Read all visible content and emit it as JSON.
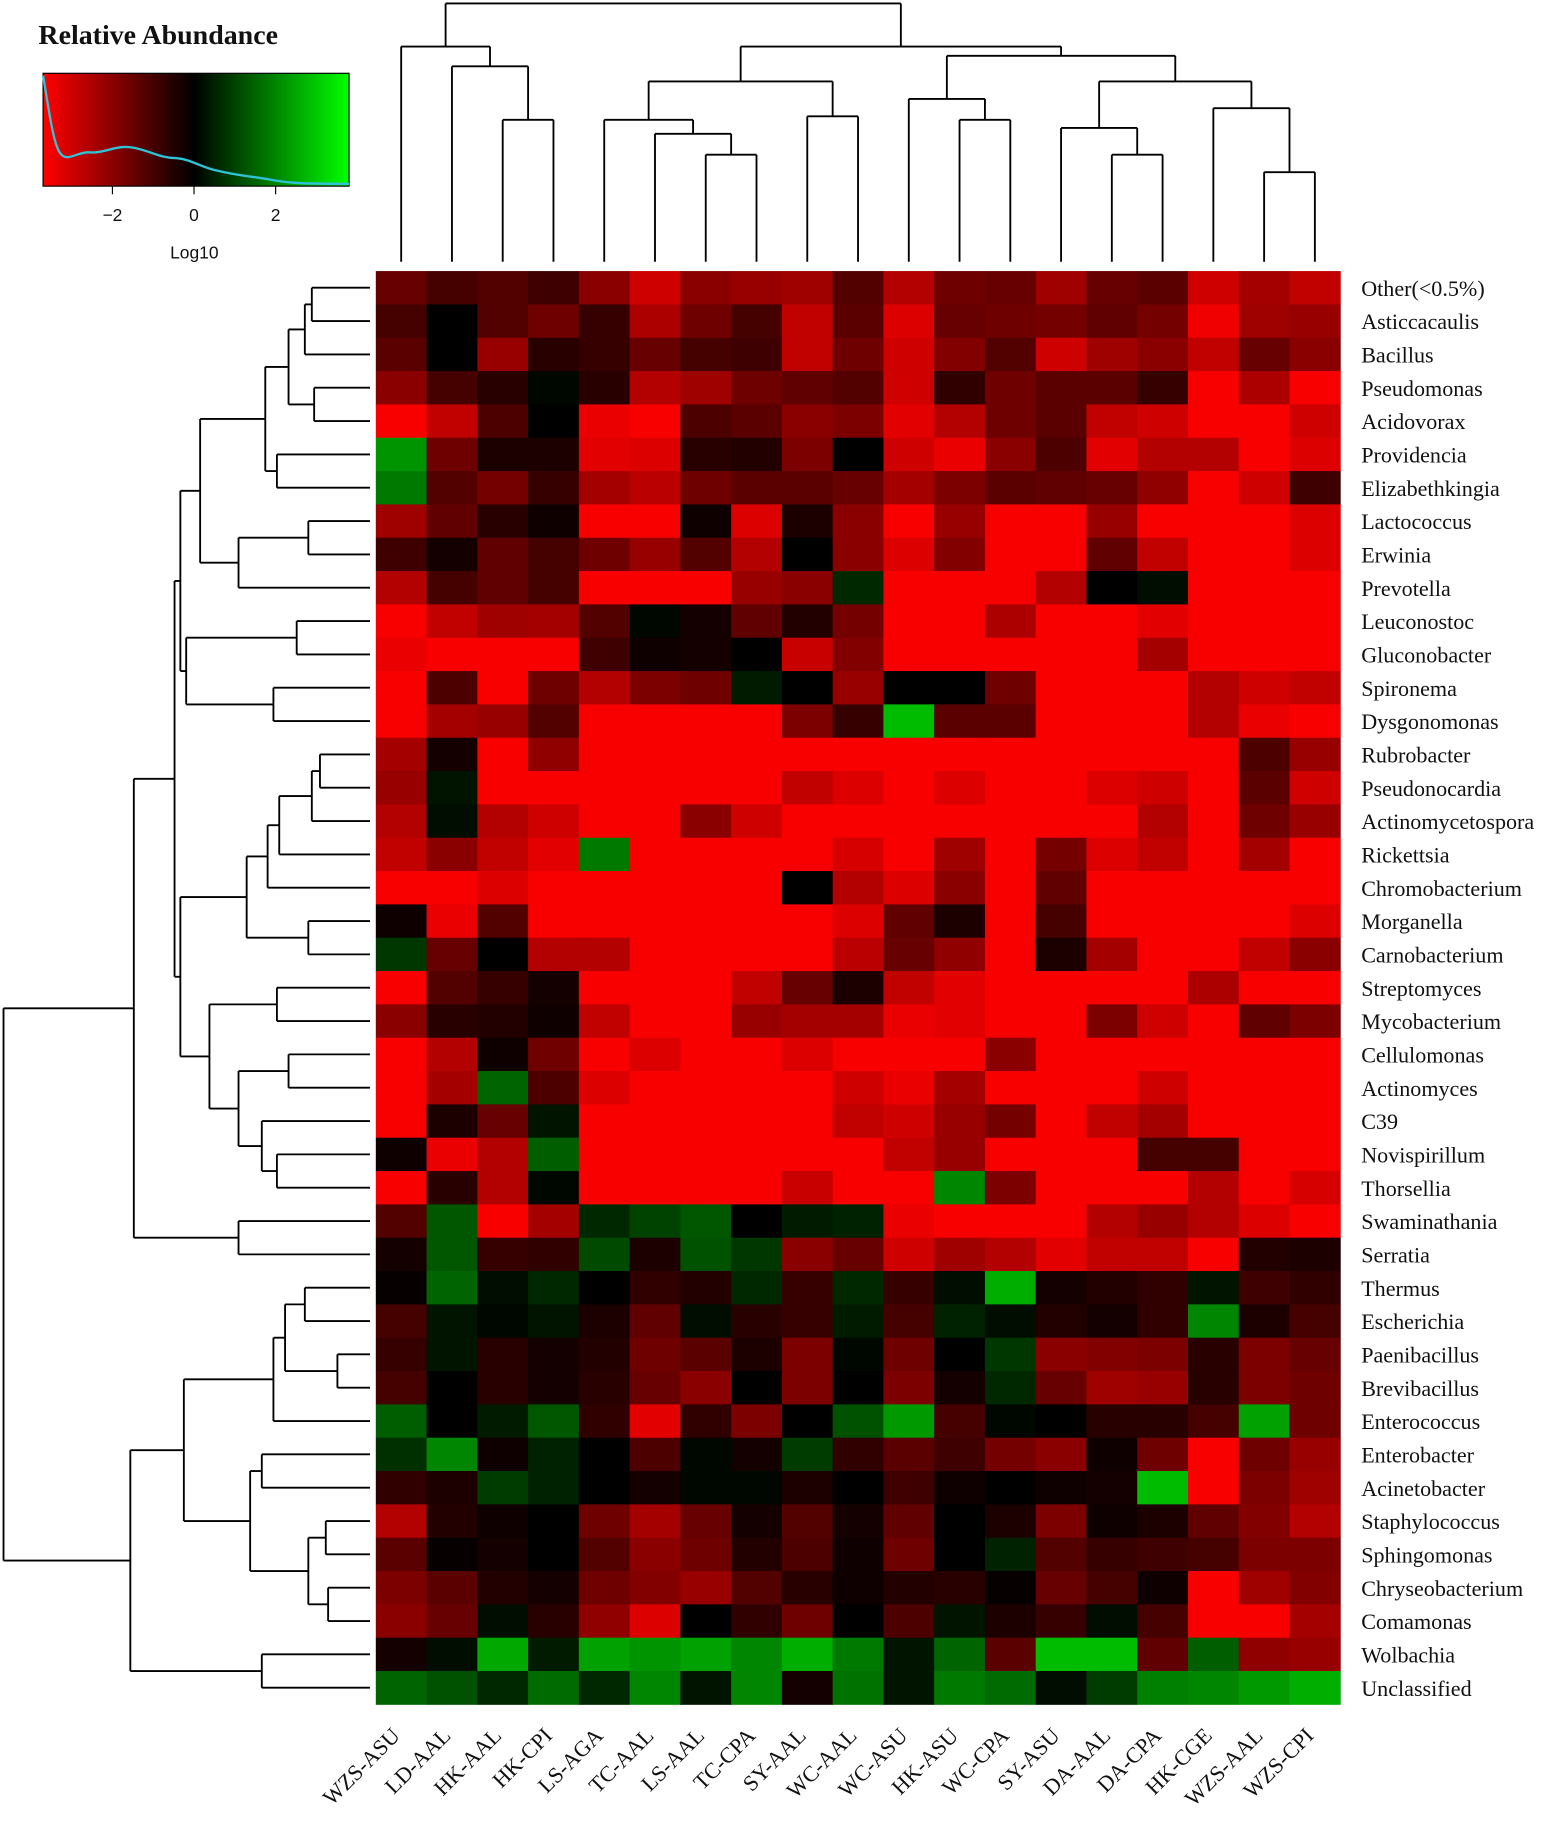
{
  "chart_data": {
    "type": "heatmap",
    "title": "Relative Abundance",
    "colorbar_label": "Log10",
    "colorscale": [
      "#ff0000",
      "#000000",
      "#00ff00"
    ],
    "zlim": [
      -3.7,
      3.8
    ],
    "zticks": [
      {
        "value": -2,
        "label": "−2"
      },
      0,
      2
    ],
    "categories": [
      "WZS-ASU",
      "LD-AAL",
      "HK-AAL",
      "HK-CPI",
      "LS-AGA",
      "TC-AAL",
      "LS-AAL",
      "TC-CPA",
      "SY-AAL",
      "WC-AAL",
      "WC-ASU",
      "HK-ASU",
      "WC-CPA",
      "SY-ASU",
      "DA-AAL",
      "DA-CPA",
      "HK-CGE",
      "WZS-AAL",
      "WZS-CPI"
    ],
    "rows": [
      "Other(<0.5%)",
      "Asticcacaulis",
      "Bacillus",
      "Pseudomonas",
      "Acidovorax",
      "Providencia",
      "Elizabethkingia",
      "Lactococcus",
      "Erwinia",
      "Prevotella",
      "Leuconostoc",
      "Gluconobacter",
      "Spironema",
      "Dysgonomonas",
      "Rubrobacter",
      "Pseudonocardia",
      "Actinomycetospora",
      "Rickettsia",
      "Chromobacterium",
      "Morganella",
      "Carnobacterium",
      "Streptomyces",
      "Mycobacterium",
      "Cellulomonas",
      "Actinomyces",
      "C39",
      "Novispirillum",
      "Thorsellia",
      "Swaminathania",
      "Serratia",
      "Thermus",
      "Escherichia",
      "Paenibacillus",
      "Brevibacillus",
      "Enterococcus",
      "Enterobacter",
      "Acinetobacter",
      "Staphylococcus",
      "Sphingomonas",
      "Chryseobacterium",
      "Comamonas",
      "Wolbachia",
      "Unclassified"
    ],
    "values": [
      [
        -1.5,
        -1.0,
        -1.2,
        -0.9,
        -2.0,
        -3.0,
        -2.0,
        -2.2,
        -2.3,
        -1.2,
        -2.6,
        -1.6,
        -1.5,
        -2.3,
        -1.5,
        -1.3,
        -3.0,
        -2.4,
        -2.8
      ],
      [
        -1.0,
        0,
        -1.2,
        -1.6,
        -0.8,
        -2.5,
        -1.6,
        -1.0,
        -2.8,
        -1.3,
        -3.2,
        -1.5,
        -1.6,
        -1.7,
        -1.4,
        -1.7,
        -3.5,
        -2.3,
        -2.2
      ],
      [
        -1.3,
        0,
        -2.2,
        -0.6,
        -0.8,
        -1.5,
        -1.0,
        -0.9,
        -2.8,
        -1.6,
        -3.0,
        -1.9,
        -1.2,
        -3.0,
        -2.3,
        -2.0,
        -2.8,
        -1.5,
        -2.0
      ],
      [
        -2.0,
        -1.0,
        -0.6,
        0.1,
        -0.6,
        -2.6,
        -2.3,
        -1.6,
        -1.4,
        -1.2,
        -3.0,
        -0.7,
        -1.6,
        -1.3,
        -1.3,
        -0.8,
        -3.6,
        -2.5,
        -3.6
      ],
      [
        -3.6,
        -2.8,
        -1.1,
        0,
        -3.4,
        -3.6,
        -1.1,
        -1.3,
        -2.0,
        -1.8,
        -3.3,
        -2.6,
        -1.6,
        -1.3,
        -2.8,
        -3.0,
        -3.6,
        -3.6,
        -3.0
      ],
      [
        2.2,
        -1.6,
        -0.4,
        -0.4,
        -3.3,
        -3.2,
        -0.6,
        -0.5,
        -1.8,
        0,
        -3.0,
        -3.4,
        -2.0,
        -1.1,
        -3.3,
        -2.6,
        -2.6,
        -3.6,
        -3.2
      ],
      [
        1.8,
        -1.2,
        -1.7,
        -0.8,
        -2.4,
        -2.7,
        -1.6,
        -1.3,
        -1.3,
        -1.5,
        -2.4,
        -1.8,
        -1.3,
        -1.4,
        -1.5,
        -2.1,
        -3.6,
        -3.0,
        -0.9
      ],
      [
        -2.3,
        -1.4,
        -0.6,
        -0.2,
        -3.6,
        -3.6,
        -0.2,
        -3.2,
        -0.4,
        -2.0,
        -3.6,
        -2.2,
        -3.6,
        -3.6,
        -2.2,
        -3.6,
        -3.6,
        -3.6,
        -3.2
      ],
      [
        -0.9,
        -0.3,
        -1.4,
        -1.0,
        -1.6,
        -2.2,
        -1.2,
        -2.6,
        0,
        -2.0,
        -3.2,
        -1.9,
        -3.6,
        -3.6,
        -1.4,
        -2.8,
        -3.6,
        -3.6,
        -3.2
      ],
      [
        -2.6,
        -1.0,
        -1.4,
        -1.0,
        -3.6,
        -3.6,
        -3.6,
        -2.2,
        -2.0,
        0.6,
        -3.6,
        -3.6,
        -3.6,
        -2.6,
        0,
        0.2,
        -3.6,
        -3.6,
        -3.6
      ],
      [
        -3.6,
        -2.8,
        -2.3,
        -2.4,
        -1.2,
        0.1,
        -0.3,
        -1.4,
        -0.5,
        -1.7,
        -3.6,
        -3.6,
        -2.5,
        -3.6,
        -3.6,
        -3.3,
        -3.6,
        -3.6,
        -3.6
      ],
      [
        -3.4,
        -3.6,
        -3.6,
        -3.6,
        -0.9,
        -0.2,
        -0.3,
        0,
        -2.9,
        -1.9,
        -3.6,
        -3.6,
        -3.6,
        -3.6,
        -3.6,
        -2.4,
        -3.6,
        -3.6,
        -3.6
      ],
      [
        -3.6,
        -1.1,
        -3.6,
        -1.6,
        -2.6,
        -1.8,
        -1.6,
        0.4,
        0,
        -2.2,
        0,
        0,
        -1.6,
        -3.6,
        -3.6,
        -3.6,
        -2.6,
        -3.0,
        -2.8
      ],
      [
        -3.6,
        -2.4,
        -2.2,
        -1.2,
        -3.6,
        -3.6,
        -3.6,
        -3.6,
        -1.8,
        -0.8,
        2.8,
        -1.3,
        -1.3,
        -3.6,
        -3.6,
        -3.6,
        -2.6,
        -3.4,
        -3.6
      ],
      [
        -2.4,
        -0.3,
        -3.6,
        -2.1,
        -3.6,
        -3.6,
        -3.6,
        -3.6,
        -3.6,
        -3.6,
        -3.6,
        -3.6,
        -3.6,
        -3.6,
        -3.6,
        -3.6,
        -3.6,
        -1.1,
        -2.2
      ],
      [
        -2.2,
        0.3,
        -3.6,
        -3.6,
        -3.6,
        -3.6,
        -3.6,
        -3.6,
        -2.8,
        -3.2,
        -3.6,
        -3.2,
        -3.6,
        -3.6,
        -3.2,
        -3.0,
        -3.6,
        -1.3,
        -3.0
      ],
      [
        -2.6,
        0.2,
        -2.6,
        -3.0,
        -3.6,
        -3.6,
        -2.0,
        -3.0,
        -3.6,
        -3.6,
        -3.6,
        -3.6,
        -3.6,
        -3.6,
        -3.6,
        -2.6,
        -3.6,
        -1.6,
        -2.2
      ],
      [
        -2.8,
        -2.0,
        -2.8,
        -3.3,
        1.8,
        -3.6,
        -3.6,
        -3.6,
        -3.6,
        -3.1,
        -3.6,
        -2.3,
        -3.6,
        -1.7,
        -3.2,
        -2.8,
        -3.6,
        -2.4,
        -3.6
      ],
      [
        -3.6,
        -3.6,
        -3.2,
        -3.6,
        -3.6,
        -3.6,
        -3.6,
        -3.6,
        0,
        -2.6,
        -3.2,
        -2.0,
        -3.6,
        -1.4,
        -3.6,
        -3.6,
        -3.6,
        -3.6,
        -3.6
      ],
      [
        -0.2,
        -3.4,
        -1.2,
        -3.6,
        -3.6,
        -3.6,
        -3.6,
        -3.6,
        -3.6,
        -3.2,
        -1.4,
        -0.4,
        -3.6,
        -1.0,
        -3.6,
        -3.6,
        -3.6,
        -3.6,
        -3.2
      ],
      [
        0.8,
        -1.5,
        0,
        -2.6,
        -2.6,
        -3.6,
        -3.6,
        -3.6,
        -3.6,
        -2.7,
        -1.5,
        -2.1,
        -3.6,
        -0.4,
        -2.4,
        -3.6,
        -3.6,
        -2.8,
        -2.0
      ],
      [
        -3.6,
        -1.2,
        -0.8,
        -0.3,
        -3.6,
        -3.6,
        -3.6,
        -2.8,
        -1.5,
        -0.4,
        -2.8,
        -3.3,
        -3.6,
        -3.6,
        -3.6,
        -3.6,
        -2.5,
        -3.6,
        -3.6
      ],
      [
        -2.0,
        -0.6,
        -0.5,
        -0.2,
        -2.8,
        -3.6,
        -3.6,
        -2.2,
        -2.4,
        -2.4,
        -3.4,
        -3.3,
        -3.6,
        -3.6,
        -1.8,
        -3.0,
        -3.6,
        -1.4,
        -1.8
      ],
      [
        -3.6,
        -2.6,
        -0.2,
        -1.6,
        -3.6,
        -3.2,
        -3.6,
        -3.6,
        -3.2,
        -3.6,
        -3.6,
        -3.6,
        -2.0,
        -3.6,
        -3.6,
        -3.6,
        -3.6,
        -3.6,
        -3.6
      ],
      [
        -3.6,
        -2.4,
        1.5,
        -1.1,
        -3.2,
        -3.6,
        -3.6,
        -3.6,
        -3.6,
        -3.0,
        -3.4,
        -2.4,
        -3.6,
        -3.6,
        -3.6,
        -3.0,
        -3.6,
        -3.6,
        -3.6
      ],
      [
        -3.6,
        -0.4,
        -1.5,
        0.3,
        -3.6,
        -3.6,
        -3.6,
        -3.6,
        -3.6,
        -2.8,
        -3.0,
        -2.2,
        -1.7,
        -3.6,
        -2.8,
        -2.4,
        -3.6,
        -3.6,
        -3.6
      ],
      [
        -0.2,
        -3.4,
        -2.6,
        1.4,
        -3.6,
        -3.6,
        -3.6,
        -3.6,
        -3.6,
        -3.6,
        -2.8,
        -2.2,
        -3.6,
        -3.6,
        -3.6,
        -1.0,
        -1.0,
        -3.6,
        -3.6
      ],
      [
        -3.6,
        -0.6,
        -2.6,
        0.1,
        -3.6,
        -3.6,
        -3.6,
        -3.6,
        -2.9,
        -3.6,
        -3.6,
        2.0,
        -1.8,
        -3.6,
        -3.6,
        -3.6,
        -2.6,
        -3.6,
        -3.1
      ],
      [
        -1.2,
        1.3,
        -3.6,
        -2.4,
        0.6,
        1.0,
        1.3,
        0,
        0.4,
        0.5,
        -3.4,
        -3.6,
        -3.6,
        -3.6,
        -2.6,
        -2.2,
        -2.6,
        -3.2,
        -3.6
      ],
      [
        -0.3,
        1.3,
        -0.8,
        -0.7,
        1.1,
        -0.4,
        1.2,
        0.8,
        -2.0,
        -1.5,
        -3.0,
        -2.3,
        -2.6,
        -3.3,
        -2.8,
        -2.8,
        -3.6,
        -0.5,
        -0.4
      ],
      [
        -0.1,
        1.5,
        0.2,
        0.6,
        0,
        -0.7,
        -0.5,
        0.6,
        -0.8,
        0.6,
        -0.8,
        0.2,
        2.6,
        -0.3,
        -0.5,
        -0.7,
        0.3,
        -0.9,
        -0.7
      ],
      [
        -1.0,
        0.3,
        0.1,
        0.3,
        -0.4,
        -1.4,
        0.2,
        -0.6,
        -0.8,
        0.4,
        -1.0,
        0.5,
        0.2,
        -0.5,
        -0.3,
        -0.7,
        2.0,
        -0.4,
        -1.0
      ],
      [
        -0.8,
        0.3,
        -0.6,
        -0.3,
        -0.5,
        -1.6,
        -1.3,
        -0.4,
        -1.8,
        0.1,
        -1.6,
        0,
        0.8,
        -2.0,
        -1.9,
        -1.8,
        -0.6,
        -1.8,
        -1.5
      ],
      [
        -1.0,
        0,
        -0.6,
        -0.3,
        -0.6,
        -1.5,
        -2.0,
        0,
        -1.8,
        0,
        -1.8,
        -0.3,
        0.6,
        -1.5,
        -2.3,
        -2.2,
        -0.6,
        -1.8,
        -1.6
      ],
      [
        1.4,
        0,
        0.4,
        1.3,
        -0.7,
        -3.3,
        -0.7,
        -1.8,
        0,
        1.2,
        2.3,
        -1.0,
        0.1,
        0,
        -0.6,
        -0.6,
        -1.0,
        2.4,
        -1.6
      ],
      [
        0.7,
        2.0,
        -0.2,
        0.5,
        0,
        -1.1,
        0.1,
        -0.3,
        0.9,
        -0.7,
        -1.3,
        -0.9,
        -1.7,
        -2.0,
        -0.2,
        -1.6,
        -3.6,
        -1.6,
        -2.2
      ],
      [
        -0.7,
        -0.4,
        0.9,
        0.5,
        0,
        -0.3,
        0.1,
        0.1,
        -0.4,
        0,
        -0.9,
        -0.2,
        0,
        -0.2,
        -0.3,
        2.8,
        -3.6,
        -1.8,
        -2.3
      ],
      [
        -2.6,
        -0.5,
        -0.2,
        0,
        -1.6,
        -2.4,
        -1.5,
        -0.3,
        -1.2,
        -0.3,
        -1.4,
        0,
        -0.4,
        -1.8,
        -0.2,
        -0.4,
        -1.4,
        -1.9,
        -2.6
      ],
      [
        -1.3,
        -0.1,
        -0.3,
        0,
        -1.2,
        -2.0,
        -1.6,
        -0.5,
        -1.1,
        -0.2,
        -1.6,
        0,
        0.5,
        -1.2,
        -0.8,
        -0.9,
        -1.0,
        -1.8,
        -1.8
      ],
      [
        -1.8,
        -1.3,
        -0.5,
        -0.3,
        -1.6,
        -1.9,
        -2.2,
        -1.2,
        -0.6,
        -0.2,
        -0.5,
        -0.6,
        -0.1,
        -1.5,
        -1.0,
        -0.2,
        -3.6,
        -2.3,
        -1.9
      ],
      [
        -2.0,
        -1.5,
        0.2,
        -0.6,
        -2.1,
        -3.2,
        0,
        -0.7,
        -1.6,
        0,
        -1.1,
        0.3,
        -0.4,
        -0.8,
        0.2,
        -1.0,
        -3.6,
        -3.6,
        -2.4
      ],
      [
        -0.3,
        0.2,
        2.5,
        0.4,
        2.4,
        2.2,
        2.4,
        2.0,
        2.6,
        1.8,
        0.3,
        1.5,
        -1.3,
        2.8,
        2.8,
        -1.4,
        1.4,
        -2.1,
        -2.2
      ],
      [
        1.5,
        1.2,
        0.6,
        1.6,
        0.6,
        2.0,
        0.3,
        2.0,
        -0.3,
        1.7,
        0.3,
        1.8,
        1.6,
        0.2,
        0.9,
        1.9,
        2.0,
        2.3,
        2.6
      ]
    ]
  }
}
